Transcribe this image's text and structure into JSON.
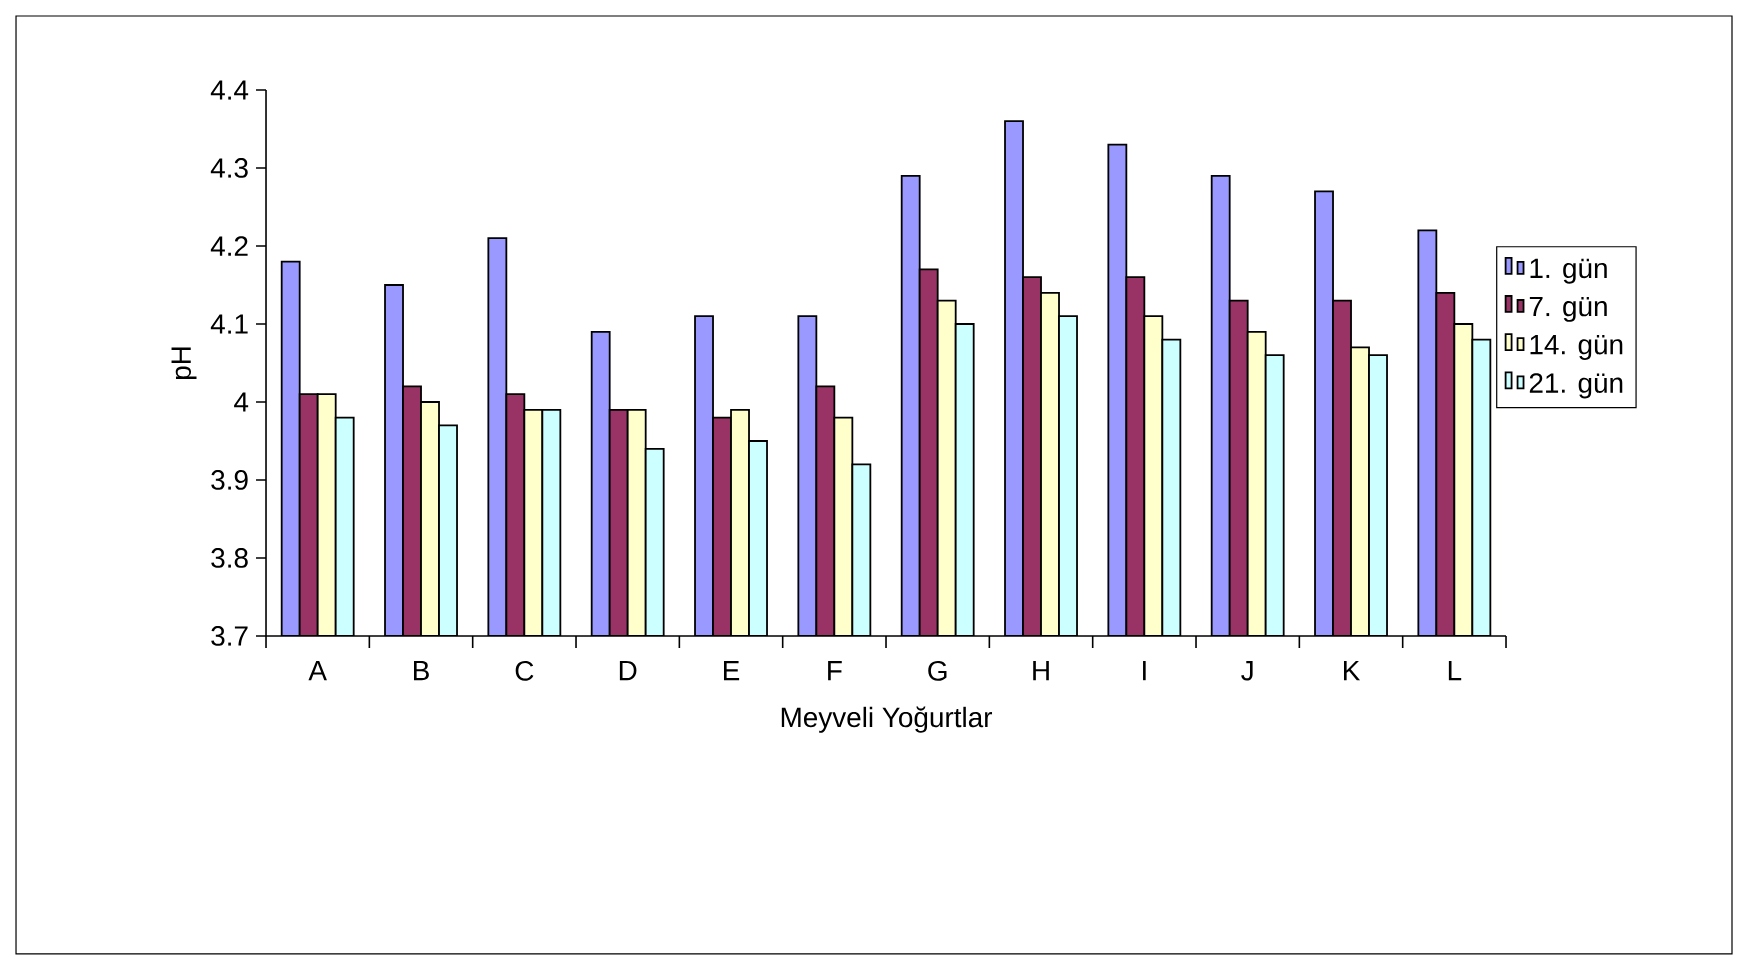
{
  "chart_data": {
    "type": "bar",
    "xlabel": "Meyveli Yoğurtlar",
    "ylabel": "pH",
    "categories": [
      "A",
      "B",
      "C",
      "D",
      "E",
      "F",
      "G",
      "H",
      "I",
      "J",
      "K",
      "L"
    ],
    "series": [
      {
        "name": "1. gün",
        "color": "#9999ff",
        "values": [
          4.18,
          4.15,
          4.21,
          4.09,
          4.11,
          4.11,
          4.29,
          4.36,
          4.33,
          4.29,
          4.27,
          4.22
        ]
      },
      {
        "name": "7. gün",
        "color": "#993366",
        "values": [
          4.01,
          4.02,
          4.01,
          3.99,
          3.98,
          4.02,
          4.17,
          4.16,
          4.16,
          4.13,
          4.13,
          4.14
        ]
      },
      {
        "name": "14. gün",
        "color": "#ffffcc",
        "values": [
          4.01,
          4.0,
          3.99,
          3.99,
          3.99,
          3.98,
          4.13,
          4.14,
          4.11,
          4.09,
          4.07,
          4.1
        ]
      },
      {
        "name": "21. gün",
        "color": "#ccffff",
        "values": [
          3.98,
          3.97,
          3.99,
          3.94,
          3.95,
          3.92,
          4.1,
          4.11,
          4.08,
          4.06,
          4.06,
          4.08
        ]
      }
    ],
    "ylim": [
      3.7,
      4.4
    ],
    "yticks": [
      3.7,
      3.8,
      3.9,
      4,
      4.1,
      4.2,
      4.3,
      4.4
    ],
    "grid": false,
    "legend": "right"
  }
}
